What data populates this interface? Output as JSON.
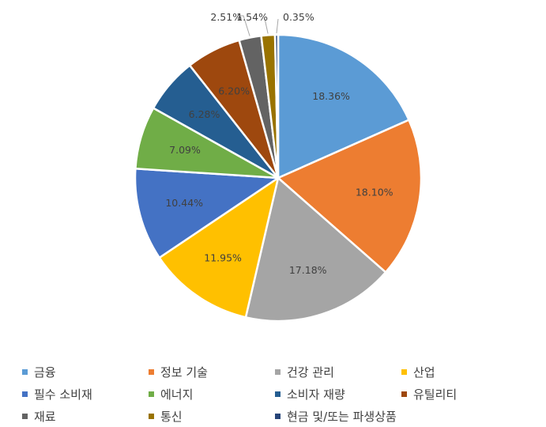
{
  "chart_data": {
    "type": "pie",
    "title": "",
    "start_angle_deg": 0,
    "direction": "clockwise",
    "slices": [
      {
        "label": "금융",
        "value": 18.36,
        "display": "18.36%",
        "color": "#5B9BD5"
      },
      {
        "label": "정보 기술",
        "value": 18.1,
        "display": "18.10%",
        "color": "#ED7D31"
      },
      {
        "label": "건강 관리",
        "value": 17.18,
        "display": "17.18%",
        "color": "#A5A5A5"
      },
      {
        "label": "산업",
        "value": 11.95,
        "display": "11.95%",
        "color": "#FFC000"
      },
      {
        "label": "필수 소비재",
        "value": 10.44,
        "display": "10.44%",
        "color": "#4472C4"
      },
      {
        "label": "에너지",
        "value": 7.09,
        "display": "7.09%",
        "color": "#70AD47"
      },
      {
        "label": "소비자 재량",
        "value": 6.28,
        "display": "6.28%",
        "color": "#255E91"
      },
      {
        "label": "유틸리티",
        "value": 6.2,
        "display": "6.20%",
        "color": "#9E480E"
      },
      {
        "label": "재료",
        "value": 2.51,
        "display": "2.51%",
        "color": "#636363"
      },
      {
        "label": "통신",
        "value": 1.54,
        "display": "1.54%",
        "color": "#997300"
      },
      {
        "label": "현금 및/또는 파생상품",
        "value": 0.35,
        "display": "0.35%",
        "color": "#264478"
      }
    ],
    "legend_position": "bottom"
  }
}
